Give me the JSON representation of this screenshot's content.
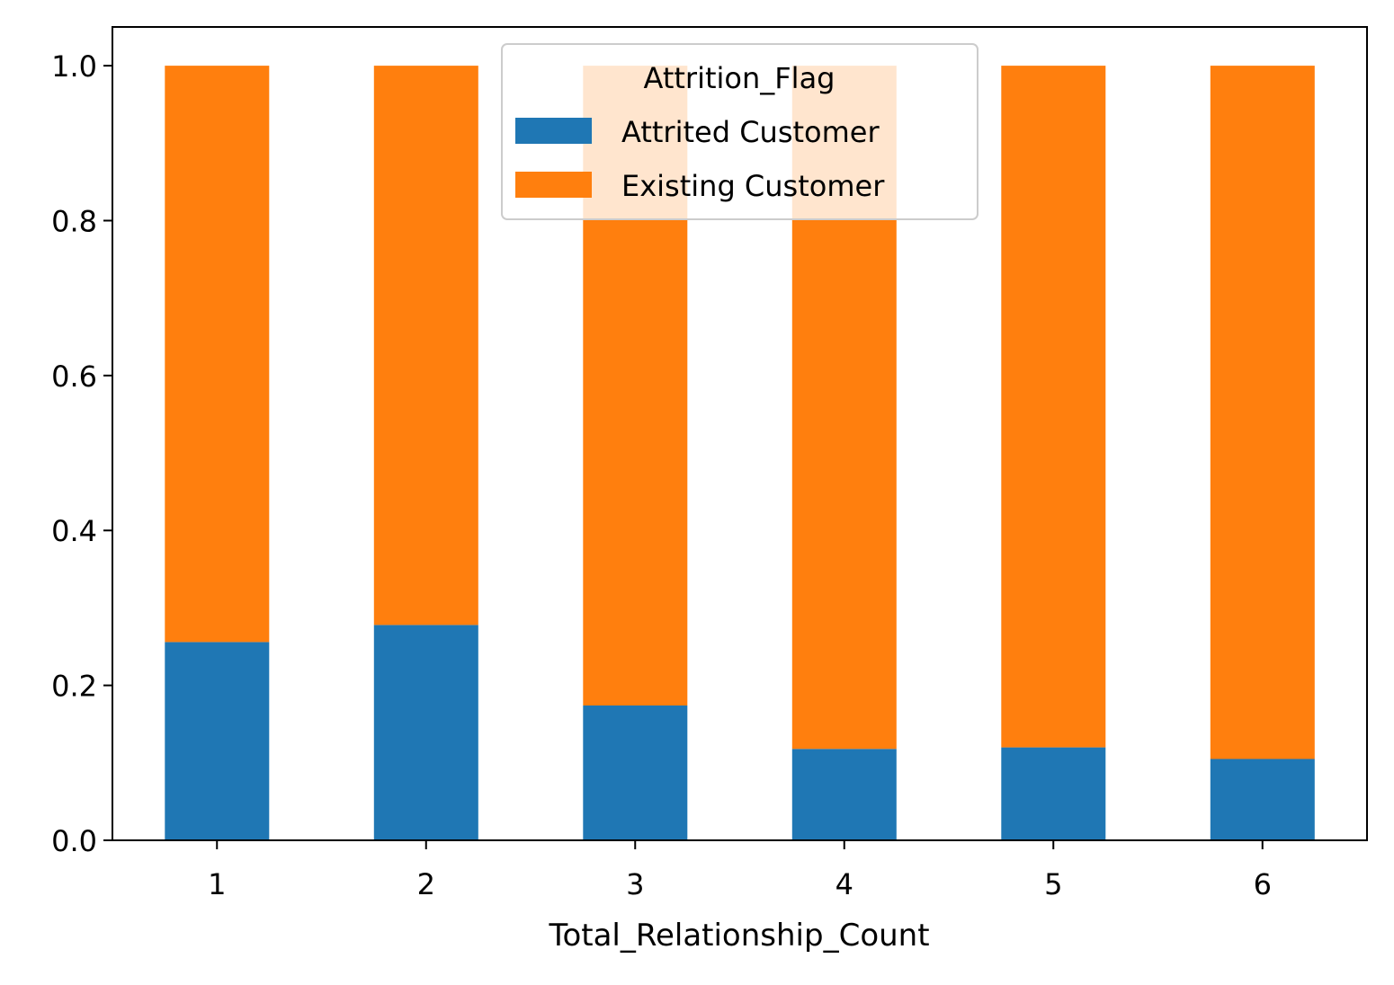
{
  "chart_data": {
    "type": "bar",
    "stacked": true,
    "title": "",
    "xlabel": "Total_Relationship_Count",
    "ylabel": "",
    "categories": [
      "1",
      "2",
      "3",
      "4",
      "5",
      "6"
    ],
    "series": [
      {
        "name": "Attrited Customer",
        "color": "#1f77b4",
        "values": [
          0.256,
          0.278,
          0.174,
          0.118,
          0.12,
          0.105
        ]
      },
      {
        "name": "Existing Customer",
        "color": "#ff7f0e",
        "values": [
          0.744,
          0.722,
          0.826,
          0.882,
          0.88,
          0.895
        ]
      }
    ],
    "ylim": [
      0,
      1.05
    ],
    "yticks": [
      "0.0",
      "0.2",
      "0.4",
      "0.6",
      "0.8",
      "1.0"
    ],
    "grid": false,
    "legend": {
      "title": "Attrition_Flag",
      "placement": "upper center"
    }
  }
}
